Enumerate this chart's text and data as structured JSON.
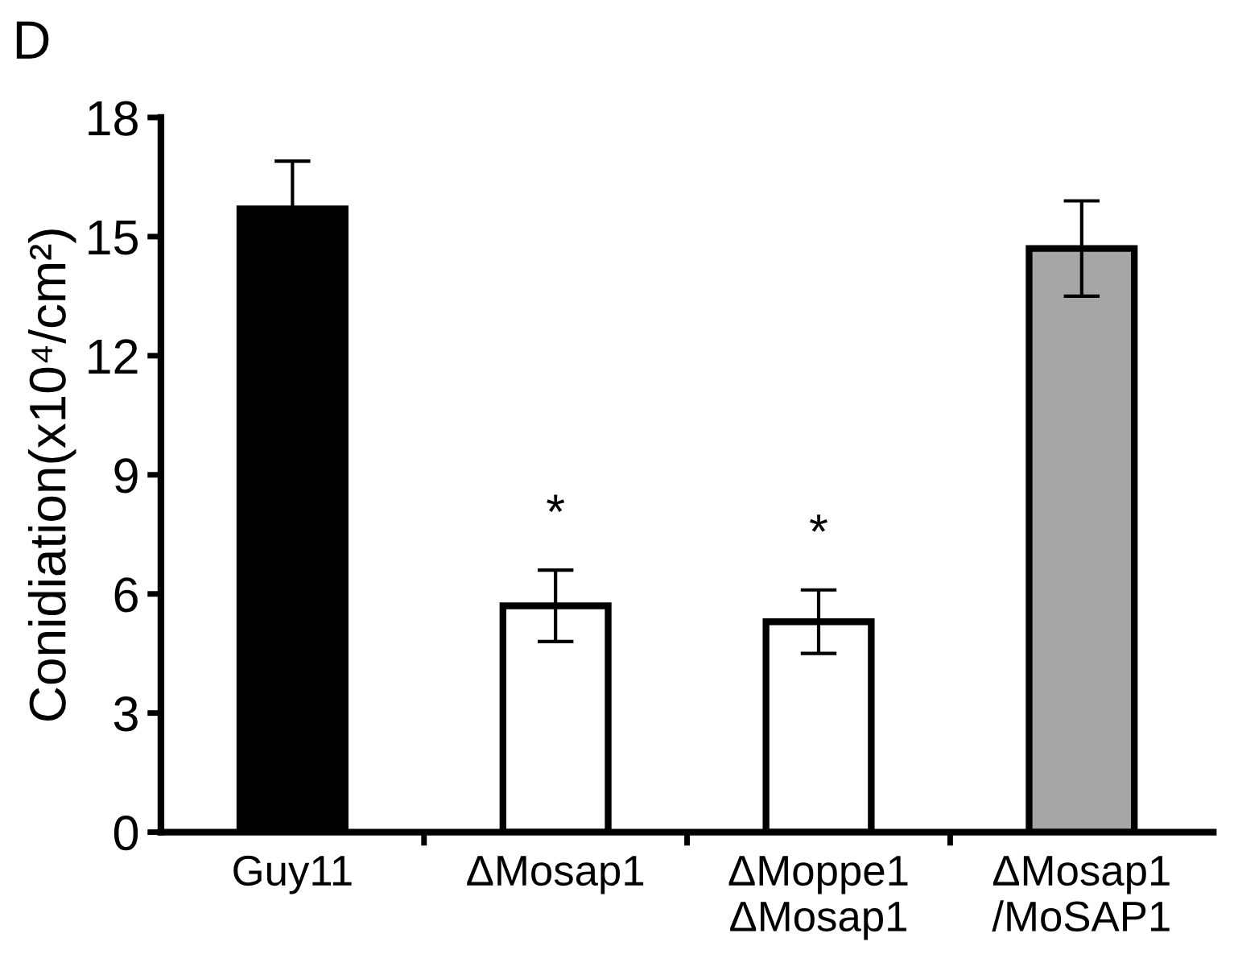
{
  "chart_data": {
    "type": "bar",
    "ylabel": "Conidiation(x10⁴/cm²)",
    "categories": [
      "Guy11",
      "ΔMosap1",
      "ΔMoppe1\nΔMosap1",
      "ΔMosap1\n/MoSAP1"
    ],
    "values": [
      15.7,
      5.7,
      5.3,
      14.7
    ],
    "errors": [
      1.2,
      0.9,
      0.8,
      1.2
    ],
    "colors": [
      "#000000",
      "#ffffff",
      "#ffffff",
      "#a6a6a6"
    ],
    "ylim": [
      0,
      18
    ],
    "yticks": [
      0,
      3,
      6,
      9,
      12,
      15,
      18
    ],
    "grid": false,
    "legend": false,
    "annotations": [
      "D",
      "*",
      "*"
    ]
  }
}
